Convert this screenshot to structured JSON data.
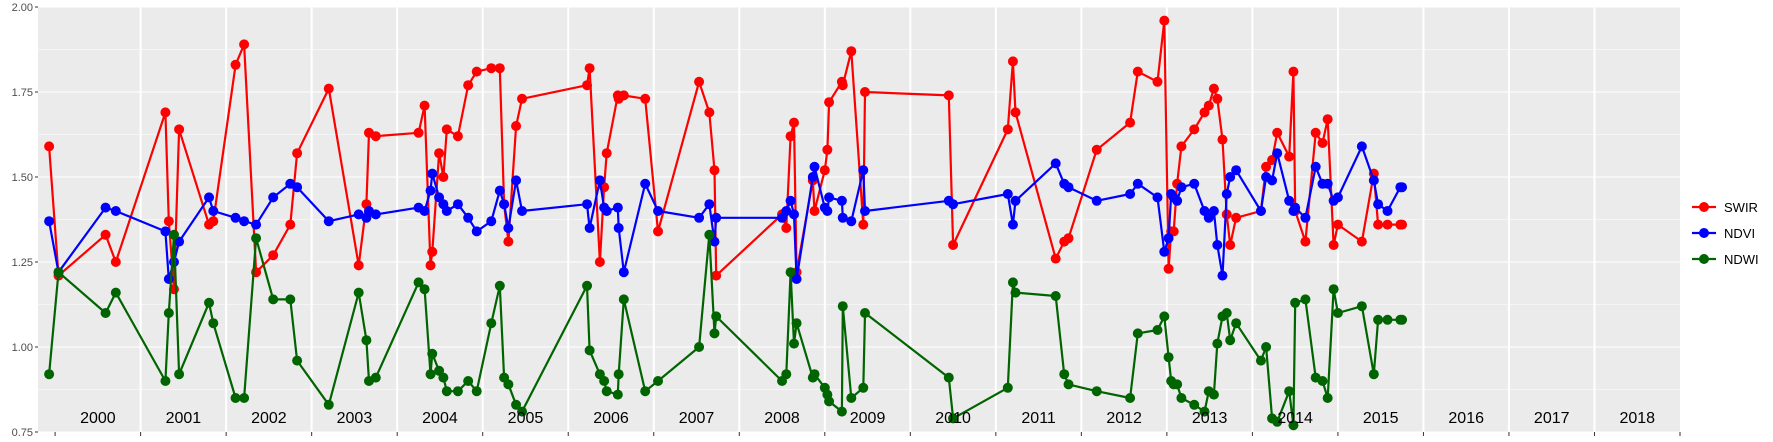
{
  "chart_data": {
    "type": "line",
    "title": "",
    "xlabel": "",
    "ylabel": "",
    "ylim": [
      0.75,
      2.0
    ],
    "xlim": [
      1999.8,
      2019.0
    ],
    "y_ticks": [
      "0.75",
      "1.00",
      "1.25",
      "1.50",
      "1.75",
      "2.00"
    ],
    "year_labels": [
      "2000",
      "2001",
      "2002",
      "2003",
      "2004",
      "2005",
      "2006",
      "2007",
      "2008",
      "2009",
      "2010",
      "2011",
      "2012",
      "2013",
      "2014",
      "2015",
      "2016",
      "2017",
      "2018"
    ],
    "grid": true,
    "legend_position": "right",
    "series": [
      {
        "name": "SWIR",
        "color": "#ff0000",
        "x": [
          1999.93,
          2000.04,
          2000.59,
          2000.71,
          2001.29,
          2001.33,
          2001.39,
          2001.45,
          2001.8,
          2001.85,
          2002.11,
          2002.21,
          2002.35,
          2002.55,
          2002.75,
          2002.83,
          2003.2,
          2003.55,
          2003.64,
          2003.67,
          2003.75,
          2004.25,
          2004.32,
          2004.39,
          2004.41,
          2004.49,
          2004.54,
          2004.58,
          2004.71,
          2004.83,
          2004.93,
          2005.1,
          2005.2,
          2005.25,
          2005.3,
          2005.39,
          2005.46,
          2006.22,
          2006.25,
          2006.37,
          2006.42,
          2006.45,
          2006.58,
          2006.59,
          2006.65,
          2006.9,
          2007.05,
          2007.53,
          2007.65,
          2007.71,
          2007.73,
          2008.5,
          2008.55,
          2008.6,
          2008.64,
          2008.67,
          2008.86,
          2008.88,
          2009.0,
          2009.03,
          2009.05,
          2009.2,
          2009.21,
          2009.31,
          2009.45,
          2009.47,
          2010.45,
          2010.5,
          2011.14,
          2011.2,
          2011.23,
          2011.7,
          2011.8,
          2011.85,
          2012.18,
          2012.57,
          2012.66,
          2012.89,
          2012.97,
          2013.02,
          2013.05,
          2013.08,
          2013.12,
          2013.17,
          2013.32,
          2013.44,
          2013.49,
          2013.55,
          2013.59,
          2013.65,
          2013.7,
          2013.74,
          2013.81,
          2014.1,
          2014.16,
          2014.23,
          2014.29,
          2014.43,
          2014.48,
          2014.5,
          2014.62,
          2014.74,
          2014.82,
          2014.88,
          2014.95,
          2015.0,
          2015.28,
          2015.42,
          2015.47,
          2015.58,
          2015.73,
          2015.75
        ],
        "y": [
          1.59,
          1.21,
          1.33,
          1.25,
          1.69,
          1.37,
          1.17,
          1.64,
          1.36,
          1.37,
          1.83,
          1.89,
          1.22,
          1.27,
          1.36,
          1.57,
          1.76,
          1.24,
          1.42,
          1.63,
          1.62,
          1.63,
          1.71,
          1.24,
          1.28,
          1.57,
          1.5,
          1.64,
          1.62,
          1.77,
          1.81,
          1.82,
          1.82,
          1.42,
          1.31,
          1.65,
          1.73,
          1.77,
          1.82,
          1.25,
          1.47,
          1.57,
          1.74,
          1.73,
          1.74,
          1.73,
          1.34,
          1.78,
          1.69,
          1.52,
          1.21,
          1.39,
          1.35,
          1.62,
          1.66,
          1.22,
          1.49,
          1.4,
          1.52,
          1.58,
          1.72,
          1.78,
          1.77,
          1.87,
          1.36,
          1.75,
          1.74,
          1.3,
          1.64,
          1.84,
          1.69,
          1.26,
          1.31,
          1.32,
          1.58,
          1.66,
          1.81,
          1.78,
          1.96,
          1.23,
          1.34,
          1.34,
          1.48,
          1.59,
          1.64,
          1.69,
          1.71,
          1.76,
          1.73,
          1.61,
          1.39,
          1.3,
          1.38,
          1.4,
          1.53,
          1.55,
          1.63,
          1.56,
          1.81,
          1.4,
          1.31,
          1.63,
          1.6,
          1.67,
          1.3,
          1.36,
          1.31,
          1.51,
          1.36,
          1.36,
          1.36,
          1.36
        ]
      },
      {
        "name": "NDVI",
        "color": "#0000ff",
        "x": [
          1999.93,
          2000.04,
          2000.59,
          2000.71,
          2001.29,
          2001.33,
          2001.39,
          2001.45,
          2001.8,
          2001.85,
          2002.11,
          2002.21,
          2002.35,
          2002.55,
          2002.75,
          2002.83,
          2003.2,
          2003.55,
          2003.64,
          2003.67,
          2003.75,
          2004.25,
          2004.32,
          2004.39,
          2004.41,
          2004.49,
          2004.54,
          2004.58,
          2004.71,
          2004.83,
          2004.93,
          2005.1,
          2005.2,
          2005.25,
          2005.3,
          2005.39,
          2005.46,
          2006.22,
          2006.25,
          2006.37,
          2006.42,
          2006.45,
          2006.58,
          2006.59,
          2006.65,
          2006.9,
          2007.05,
          2007.53,
          2007.65,
          2007.71,
          2007.73,
          2008.5,
          2008.55,
          2008.6,
          2008.64,
          2008.67,
          2008.86,
          2008.88,
          2009.0,
          2009.03,
          2009.05,
          2009.2,
          2009.21,
          2009.31,
          2009.45,
          2009.47,
          2010.45,
          2010.5,
          2011.14,
          2011.2,
          2011.23,
          2011.7,
          2011.8,
          2011.85,
          2012.18,
          2012.57,
          2012.66,
          2012.89,
          2012.97,
          2013.02,
          2013.05,
          2013.08,
          2013.12,
          2013.17,
          2013.32,
          2013.44,
          2013.49,
          2013.55,
          2013.59,
          2013.65,
          2013.7,
          2013.74,
          2013.81,
          2014.1,
          2014.16,
          2014.23,
          2014.29,
          2014.43,
          2014.48,
          2014.5,
          2014.62,
          2014.74,
          2014.82,
          2014.88,
          2014.95,
          2015.0,
          2015.28,
          2015.42,
          2015.47,
          2015.58,
          2015.73,
          2015.75
        ],
        "y": [
          1.37,
          1.22,
          1.41,
          1.4,
          1.34,
          1.2,
          1.25,
          1.31,
          1.44,
          1.4,
          1.38,
          1.37,
          1.36,
          1.44,
          1.48,
          1.47,
          1.37,
          1.39,
          1.38,
          1.4,
          1.39,
          1.41,
          1.4,
          1.46,
          1.51,
          1.44,
          1.42,
          1.4,
          1.42,
          1.38,
          1.34,
          1.37,
          1.46,
          1.42,
          1.35,
          1.49,
          1.4,
          1.42,
          1.35,
          1.49,
          1.41,
          1.4,
          1.41,
          1.35,
          1.22,
          1.48,
          1.4,
          1.38,
          1.42,
          1.31,
          1.38,
          1.38,
          1.4,
          1.43,
          1.39,
          1.2,
          1.5,
          1.53,
          1.41,
          1.4,
          1.44,
          1.43,
          1.38,
          1.37,
          1.52,
          1.4,
          1.43,
          1.42,
          1.45,
          1.36,
          1.43,
          1.54,
          1.48,
          1.47,
          1.43,
          1.45,
          1.48,
          1.44,
          1.28,
          1.32,
          1.45,
          1.44,
          1.43,
          1.47,
          1.48,
          1.4,
          1.38,
          1.4,
          1.3,
          1.21,
          1.45,
          1.5,
          1.52,
          1.4,
          1.5,
          1.49,
          1.57,
          1.43,
          1.4,
          1.41,
          1.38,
          1.53,
          1.48,
          1.48,
          1.43,
          1.44,
          1.59,
          1.49,
          1.42,
          1.4,
          1.47,
          1.47
        ]
      },
      {
        "name": "NDWI",
        "color": "#006400",
        "x": [
          1999.93,
          2000.04,
          2000.59,
          2000.71,
          2001.29,
          2001.33,
          2001.39,
          2001.45,
          2001.8,
          2001.85,
          2002.11,
          2002.21,
          2002.35,
          2002.55,
          2002.75,
          2002.83,
          2003.2,
          2003.55,
          2003.64,
          2003.67,
          2003.75,
          2004.25,
          2004.32,
          2004.39,
          2004.41,
          2004.49,
          2004.54,
          2004.58,
          2004.71,
          2004.83,
          2004.93,
          2005.1,
          2005.2,
          2005.25,
          2005.3,
          2005.39,
          2005.46,
          2006.22,
          2006.25,
          2006.37,
          2006.42,
          2006.45,
          2006.58,
          2006.59,
          2006.65,
          2006.9,
          2007.05,
          2007.53,
          2007.65,
          2007.71,
          2007.73,
          2008.5,
          2008.55,
          2008.6,
          2008.64,
          2008.67,
          2008.86,
          2008.88,
          2009.0,
          2009.03,
          2009.05,
          2009.2,
          2009.21,
          2009.31,
          2009.45,
          2009.47,
          2010.45,
          2010.5,
          2011.14,
          2011.2,
          2011.23,
          2011.7,
          2011.8,
          2011.85,
          2012.18,
          2012.57,
          2012.66,
          2012.89,
          2012.97,
          2013.02,
          2013.05,
          2013.08,
          2013.12,
          2013.17,
          2013.32,
          2013.44,
          2013.49,
          2013.55,
          2013.59,
          2013.65,
          2013.7,
          2013.74,
          2013.81,
          2014.1,
          2014.16,
          2014.23,
          2014.29,
          2014.43,
          2014.48,
          2014.5,
          2014.62,
          2014.74,
          2014.82,
          2014.88,
          2014.95,
          2015.0,
          2015.28,
          2015.42,
          2015.47,
          2015.58,
          2015.73,
          2015.75
        ],
        "y": [
          0.92,
          1.22,
          1.1,
          1.16,
          0.9,
          1.1,
          1.33,
          0.92,
          1.13,
          1.07,
          0.85,
          0.85,
          1.32,
          1.14,
          1.14,
          0.96,
          0.83,
          1.16,
          1.02,
          0.9,
          0.91,
          1.19,
          1.17,
          0.92,
          0.98,
          0.93,
          0.91,
          0.87,
          0.87,
          0.9,
          0.87,
          1.07,
          1.18,
          0.91,
          0.89,
          0.83,
          0.81,
          1.18,
          0.99,
          0.92,
          0.9,
          0.87,
          0.86,
          0.92,
          1.14,
          0.87,
          0.9,
          1.0,
          1.33,
          1.04,
          1.09,
          0.9,
          0.92,
          1.22,
          1.01,
          1.07,
          0.91,
          0.92,
          0.88,
          0.86,
          0.84,
          0.81,
          1.12,
          0.85,
          0.88,
          1.1,
          0.91,
          0.79,
          0.88,
          1.19,
          1.16,
          1.15,
          0.92,
          0.89,
          0.87,
          0.85,
          1.04,
          1.05,
          1.09,
          0.97,
          0.9,
          0.89,
          0.89,
          0.85,
          0.83,
          0.81,
          0.87,
          0.86,
          1.01,
          1.09,
          1.1,
          1.02,
          1.07,
          0.96,
          1.0,
          0.79,
          0.78,
          0.87,
          0.77,
          1.13,
          1.14,
          0.91,
          0.9,
          0.85,
          1.17,
          1.1,
          1.12,
          0.92,
          1.08,
          1.08,
          1.08,
          1.08
        ]
      }
    ]
  }
}
